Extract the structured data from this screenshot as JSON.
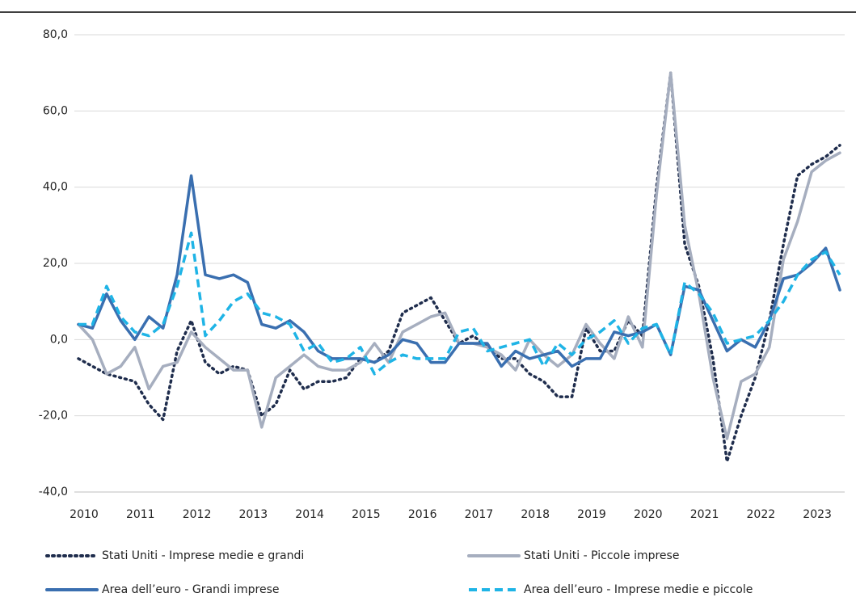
{
  "chart_data": {
    "type": "line",
    "categories": [
      "2010",
      null,
      null,
      null,
      "2011",
      null,
      null,
      null,
      "2012",
      null,
      null,
      null,
      "2013",
      null,
      null,
      null,
      "2014",
      null,
      null,
      null,
      "2015",
      null,
      null,
      null,
      "2016",
      null,
      null,
      null,
      "2017",
      null,
      null,
      null,
      "2018",
      null,
      null,
      null,
      "2019",
      null,
      null,
      null,
      "2020",
      null,
      null,
      null,
      "2021",
      null,
      null,
      null,
      "2022",
      null,
      null,
      null,
      "2023",
      null,
      null
    ],
    "ylim": [
      -40,
      80
    ],
    "yticks": [
      {
        "value": -40,
        "label": "-40,0"
      },
      {
        "value": -20,
        "label": "-20,0"
      },
      {
        "value": 0,
        "label": "0,0"
      },
      {
        "value": 20,
        "label": "20,0"
      },
      {
        "value": 40,
        "label": "40,0"
      },
      {
        "value": 60,
        "label": "60,0"
      },
      {
        "value": 80,
        "label": "80,0"
      }
    ],
    "grid": true,
    "series": [
      {
        "name": "Stati Uniti - Imprese medie e grandi",
        "color": "#1f2d4d",
        "dash": "dotted",
        "values": [
          -5,
          -7,
          -9,
          -10,
          -11,
          -17,
          -21,
          -3,
          5,
          -6,
          -9,
          -7,
          -8,
          -20,
          -17,
          -8,
          -13,
          -11,
          -11,
          -10,
          -5,
          -6,
          -3,
          7,
          9,
          11,
          5,
          -1,
          1,
          -2,
          -5,
          -5,
          -9,
          -11,
          -15,
          -15,
          3,
          -3,
          -3,
          5,
          1,
          40,
          70,
          25,
          14,
          -5,
          -32,
          -20,
          -10,
          5,
          25,
          43,
          46,
          48,
          51
        ]
      },
      {
        "name": "Stati Uniti - Piccole imprese",
        "color": "#a6aebf",
        "dash": "solid",
        "values": [
          4,
          0,
          -9,
          -7,
          -2,
          -13,
          -7,
          -6,
          2,
          -2,
          -5,
          -8,
          -8,
          -23,
          -10,
          -7,
          -4,
          -7,
          -8,
          -8,
          -6,
          -1,
          -6,
          2,
          4,
          6,
          7,
          -1,
          -1,
          -2,
          -4,
          -8,
          0,
          -4,
          -7,
          -4,
          4,
          -1,
          -5,
          6,
          -2,
          38,
          70,
          30,
          12,
          -10,
          -26,
          -11,
          -9,
          -2,
          21,
          31,
          44,
          47,
          49
        ]
      },
      {
        "name": "Area dell’euro - Grandi imprese",
        "color": "#3a6fb0",
        "dash": "solid",
        "values": [
          4,
          3,
          12,
          5,
          0,
          6,
          3,
          17,
          43,
          17,
          16,
          17,
          15,
          4,
          3,
          5,
          2,
          -3,
          -5,
          -5,
          -5,
          -6,
          -4,
          0,
          -1,
          -6,
          -6,
          -1,
          -1,
          -1,
          -7,
          -3,
          -5,
          -4,
          -3,
          -7,
          -5,
          -5,
          2,
          1,
          2,
          4,
          -4,
          14,
          13,
          5,
          -3,
          0,
          -2,
          5,
          16,
          17,
          20,
          24,
          13
        ]
      },
      {
        "name": "Area dell’euro - Imprese medie e piccole",
        "color": "#1fb4e6",
        "dash": "dashed",
        "values": [
          4,
          4,
          14,
          6,
          2,
          1,
          4,
          14,
          28,
          1,
          5,
          10,
          12,
          7,
          6,
          4,
          -3,
          -1,
          -6,
          -5,
          -2,
          -9,
          -6,
          -4,
          -5,
          -5,
          -5,
          2,
          3,
          -3,
          -2,
          -1,
          0,
          -7,
          -1,
          -4,
          0,
          2,
          5,
          -1,
          3,
          4,
          -4,
          15,
          12,
          7,
          -1,
          0,
          1,
          5,
          10,
          17,
          21,
          23,
          17
        ]
      }
    ]
  }
}
